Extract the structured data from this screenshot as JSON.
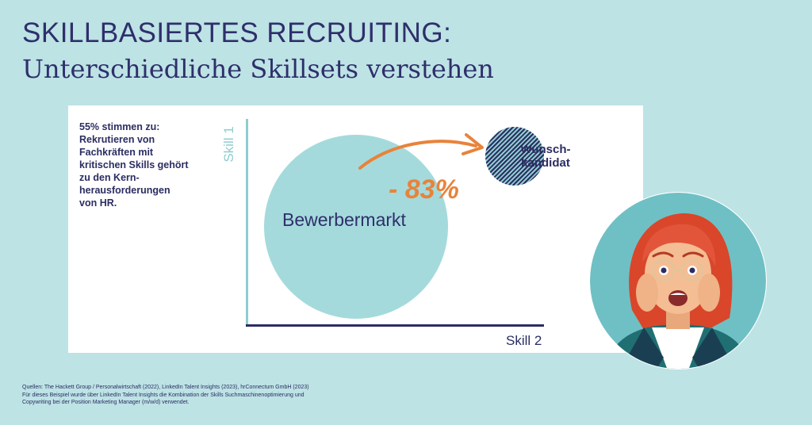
{
  "title": {
    "line1": "SKILLBASIERTES RECRUITING:",
    "line2": "Unterschiedliche Skillsets verstehen"
  },
  "stat_text": {
    "lines": [
      "55% stimmen zu:",
      "Rekrutieren von",
      "Fachkräften mit",
      "kritischen Skills gehört",
      "zu den Kern-",
      "herausforderungen",
      "von HR."
    ]
  },
  "diagram": {
    "y_axis_label": "Skill 1",
    "x_axis_label": "Skill 2",
    "market_label": "Bewerbermarkt",
    "target_label_lines": [
      "Wunsch-",
      "kandidat"
    ],
    "reduction": "- 83%"
  },
  "sources": {
    "lines": [
      "Quellen: The Hackett Group / Personalwirtschaft (2022), LinkedIn Talent Insights (2023), hrConnectum GmbH (2023)",
      "Für dieses Beispiel wurde über LinkedIn Talent Insights die Kombination der Skills Suchmaschinenoptimierung und",
      "Copywriting bei der Position Marketing Manager (m/w/d) verwendet."
    ]
  },
  "colors": {
    "background": "#bde3e5",
    "navy": "#2b2d62",
    "teal": "#8fcccf",
    "orange": "#e8833a"
  }
}
